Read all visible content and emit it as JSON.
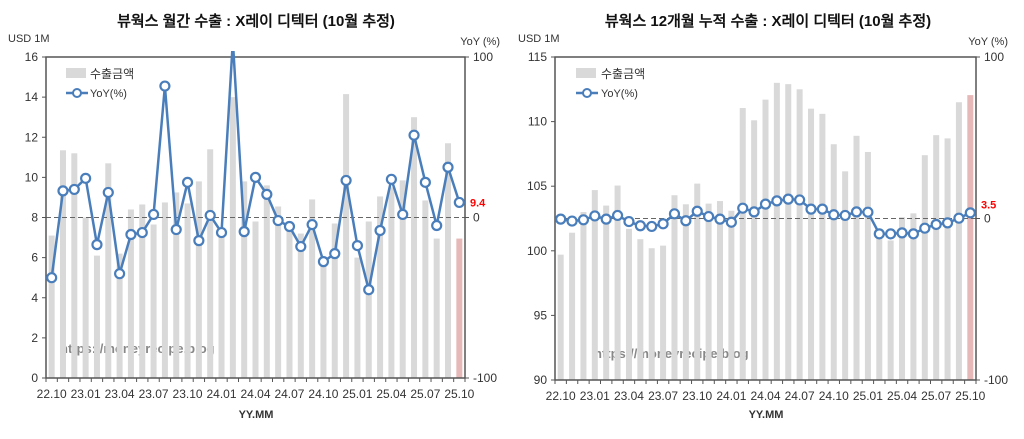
{
  "chart_data": [
    {
      "type": "bar+line",
      "title": "뷰웍스 월간 수출 : X레이 디텍터 (10월 추정)",
      "ylabel_left": "USD 1M",
      "ylabel_right": "YoY (%)",
      "xlabel": "YY.MM",
      "ylim_left": [
        0,
        16
      ],
      "yticks_left": [
        0,
        2,
        4,
        6,
        8,
        10,
        12,
        14,
        16
      ],
      "ylim_right": [
        -100,
        100
      ],
      "yticks_right": [
        -100,
        0,
        100
      ],
      "legend": {
        "placement": "top-left",
        "bar": "수출금액",
        "line": "YoY(%)"
      },
      "watermark": "https://moneyrecipe.blog",
      "last_label": "9.4",
      "x": [
        "22.10",
        "22.11",
        "22.12",
        "23.01",
        "23.02",
        "23.03",
        "23.04",
        "23.05",
        "23.06",
        "23.07",
        "23.08",
        "23.09",
        "23.10",
        "23.11",
        "23.12",
        "24.01",
        "24.02",
        "24.03",
        "24.04",
        "24.05",
        "24.06",
        "24.07",
        "24.08",
        "24.09",
        "24.10",
        "24.11",
        "24.12",
        "25.01",
        "25.02",
        "25.03",
        "25.04",
        "25.05",
        "25.06",
        "25.07",
        "25.08",
        "25.09",
        "25.10"
      ],
      "xtick_labels": [
        "22.10",
        "23.01",
        "23.04",
        "23.07",
        "23.10",
        "24.01",
        "24.04",
        "24.07",
        "24.10",
        "25.01",
        "25.04",
        "25.07",
        "25.10"
      ],
      "series": [
        {
          "name": "수출금액",
          "axis": "left",
          "values": [
            7.1,
            11.35,
            11.2,
            8.0,
            6.1,
            10.7,
            6.2,
            8.4,
            8.65,
            7.65,
            8.75,
            9.25,
            8.7,
            9.8,
            11.4,
            7.3,
            14.0,
            9.8,
            7.8,
            9.6,
            8.55,
            7.5,
            7.2,
            8.9,
            6.0,
            7.7,
            14.15,
            6.0,
            7.8,
            9.05,
            9.5,
            9.85,
            13.0,
            8.85,
            6.95,
            11.7,
            6.95
          ]
        },
        {
          "name": "YoY(%)",
          "axis": "right",
          "values": [
            -37.5,
            16.6,
            17.5,
            24.4,
            -16.9,
            15.6,
            -35,
            -10.6,
            -9.4,
            1.9,
            81.9,
            -7.5,
            21.9,
            -14.4,
            1.3,
            -9.4,
            110,
            -8.8,
            25,
            14.4,
            -1.9,
            -5.6,
            -18.1,
            -4.4,
            -27.5,
            -22.5,
            23.1,
            -17.5,
            -45,
            -8.1,
            23.8,
            1.9,
            51.3,
            21.9,
            -5,
            31.3,
            9.4
          ]
        }
      ],
      "colors": {
        "bar": "#d9d9d9",
        "bar_estimate": "#e6b8b7",
        "line": "#4a7ebb",
        "label": "#ff0000"
      },
      "grid": false
    },
    {
      "type": "bar+line",
      "title": "뷰웍스 12개월 누적 수출 : X레이 디텍터 (10월 추정)",
      "ylabel_left": "USD 1M",
      "ylabel_right": "YoY (%)",
      "xlabel": "YY.MM",
      "ylim_left": [
        90,
        115
      ],
      "yticks_left": [
        90,
        95,
        100,
        105,
        110,
        115
      ],
      "ylim_right": [
        -100,
        100
      ],
      "yticks_right": [
        -100,
        0,
        100
      ],
      "legend": {
        "placement": "top-left",
        "bar": "수출금액",
        "line": "YoY(%)"
      },
      "watermark": "https://moneyrecipe.blog",
      "last_label": "3.5",
      "x": [
        "22.10",
        "22.11",
        "22.12",
        "23.01",
        "23.02",
        "23.03",
        "23.04",
        "23.05",
        "23.06",
        "23.07",
        "23.08",
        "23.09",
        "23.10",
        "23.11",
        "23.12",
        "24.01",
        "24.02",
        "24.03",
        "24.04",
        "24.05",
        "24.06",
        "24.07",
        "24.08",
        "24.09",
        "24.10",
        "24.11",
        "24.12",
        "25.01",
        "25.02",
        "25.03",
        "25.04",
        "25.05",
        "25.06",
        "25.07",
        "25.08",
        "25.09",
        "25.10"
      ],
      "xtick_labels": [
        "22.10",
        "23.01",
        "23.04",
        "23.07",
        "23.10",
        "24.01",
        "24.04",
        "24.07",
        "24.10",
        "25.01",
        "25.04",
        "25.07",
        "25.10"
      ],
      "series": [
        {
          "name": "수출금액",
          "axis": "left",
          "values": [
            99.7,
            101.4,
            103.0,
            104.7,
            103.5,
            105.05,
            101.7,
            100.9,
            100.2,
            100.4,
            104.3,
            103.6,
            105.2,
            103.65,
            103.85,
            103.1,
            111.05,
            110.1,
            111.7,
            113.0,
            112.9,
            112.5,
            111.0,
            110.6,
            108.25,
            106.15,
            108.9,
            107.65,
            101.5,
            100.8,
            102.6,
            102.9,
            107.4,
            108.95,
            108.7,
            111.5,
            112.05
          ]
        },
        {
          "name": "YoY(%)",
          "axis": "right",
          "values": [
            -0.4,
            -1.6,
            -0.8,
            1.6,
            -0.4,
            1.9,
            -1.9,
            -4.5,
            -4.9,
            -3.3,
            2.9,
            -1.4,
            4.5,
            1.2,
            -0.4,
            -2.3,
            6.4,
            4.1,
            8.9,
            10.9,
            12.0,
            11.5,
            5.8,
            5.8,
            2.3,
            1.9,
            4.1,
            3.9,
            -9.5,
            -9.5,
            -8.9,
            -9.5,
            -6.0,
            -3.7,
            -2.7,
            0.2,
            3.5
          ]
        }
      ],
      "colors": {
        "bar": "#d9d9d9",
        "bar_estimate": "#e6b8b7",
        "line": "#4a7ebb",
        "label": "#ff0000"
      },
      "grid": false
    }
  ]
}
